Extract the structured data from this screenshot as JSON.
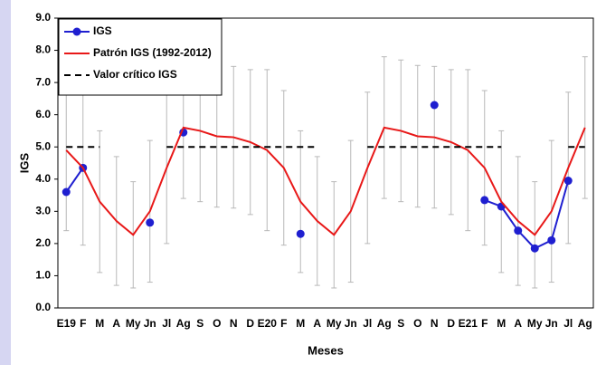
{
  "chart_data": {
    "type": "line",
    "x_label": "Meses",
    "y_label": "IGS",
    "categories": [
      "E19",
      "F",
      "M",
      "A",
      "My",
      "Jn",
      "Jl",
      "Ag",
      "S",
      "O",
      "N",
      "D",
      "E20",
      "F",
      "M",
      "A",
      "My",
      "Jn",
      "Jl",
      "Ag",
      "S",
      "O",
      "N",
      "D",
      "E21",
      "F",
      "M",
      "A",
      "My",
      "Jn",
      "Jl",
      "Ag"
    ],
    "ylim": [
      0,
      9
    ],
    "yticks": [
      {
        "value": 0,
        "label": "0.0"
      },
      {
        "value": 1,
        "label": "1.0"
      },
      {
        "value": 2,
        "label": "2.0"
      },
      {
        "value": 3,
        "label": "3.0"
      },
      {
        "value": 4,
        "label": "4.0"
      },
      {
        "value": 5,
        "label": "5.0"
      },
      {
        "value": 6,
        "label": "6.0"
      },
      {
        "value": 7,
        "label": "7.0"
      },
      {
        "value": 8,
        "label": "8.0"
      },
      {
        "value": 9,
        "label": "9.0"
      }
    ],
    "legend": "upper left",
    "series": [
      {
        "name": "IGS",
        "color": "#1f1fd0",
        "line_style": "solid",
        "marker": "circle",
        "values": [
          3.6,
          4.35,
          null,
          null,
          null,
          2.65,
          null,
          5.45,
          null,
          null,
          null,
          null,
          null,
          null,
          2.3,
          null,
          null,
          null,
          null,
          null,
          null,
          null,
          6.3,
          null,
          null,
          3.35,
          3.15,
          2.4,
          1.85,
          2.1,
          3.95,
          null
        ]
      },
      {
        "name": "Patrón IGS (1992-2012)",
        "color": "#e81818",
        "line_style": "solid",
        "marker": "none",
        "error_color": "#b8b8b8",
        "values": [
          4.9,
          4.35,
          3.3,
          2.7,
          2.27,
          3.0,
          4.35,
          5.6,
          5.5,
          5.33,
          5.3,
          5.15,
          4.9,
          4.35,
          3.3,
          2.7,
          2.27,
          3.0,
          4.35,
          5.6,
          5.5,
          5.33,
          5.3,
          5.15,
          4.9,
          4.35,
          3.3,
          2.7,
          2.27,
          3.0,
          4.35,
          5.6
        ],
        "errors": [
          2.5,
          2.4,
          2.2,
          2.0,
          1.65,
          2.2,
          2.35,
          2.2,
          2.2,
          2.2,
          2.2,
          2.25,
          2.5,
          2.4,
          2.2,
          2.0,
          1.65,
          2.2,
          2.35,
          2.2,
          2.2,
          2.2,
          2.2,
          2.25,
          2.5,
          2.4,
          2.2,
          2.0,
          1.65,
          2.2,
          2.35,
          2.2
        ]
      },
      {
        "name": "Valor crítico IGS",
        "color": "#000000",
        "line_style": "dashed",
        "marker": "none",
        "values": [
          5,
          5,
          5,
          null,
          null,
          null,
          5,
          5,
          5,
          5,
          5,
          5,
          5,
          5,
          5,
          5,
          null,
          null,
          5,
          5,
          5,
          5,
          5,
          5,
          5,
          5,
          5,
          null,
          null,
          null,
          5,
          5
        ]
      }
    ]
  }
}
